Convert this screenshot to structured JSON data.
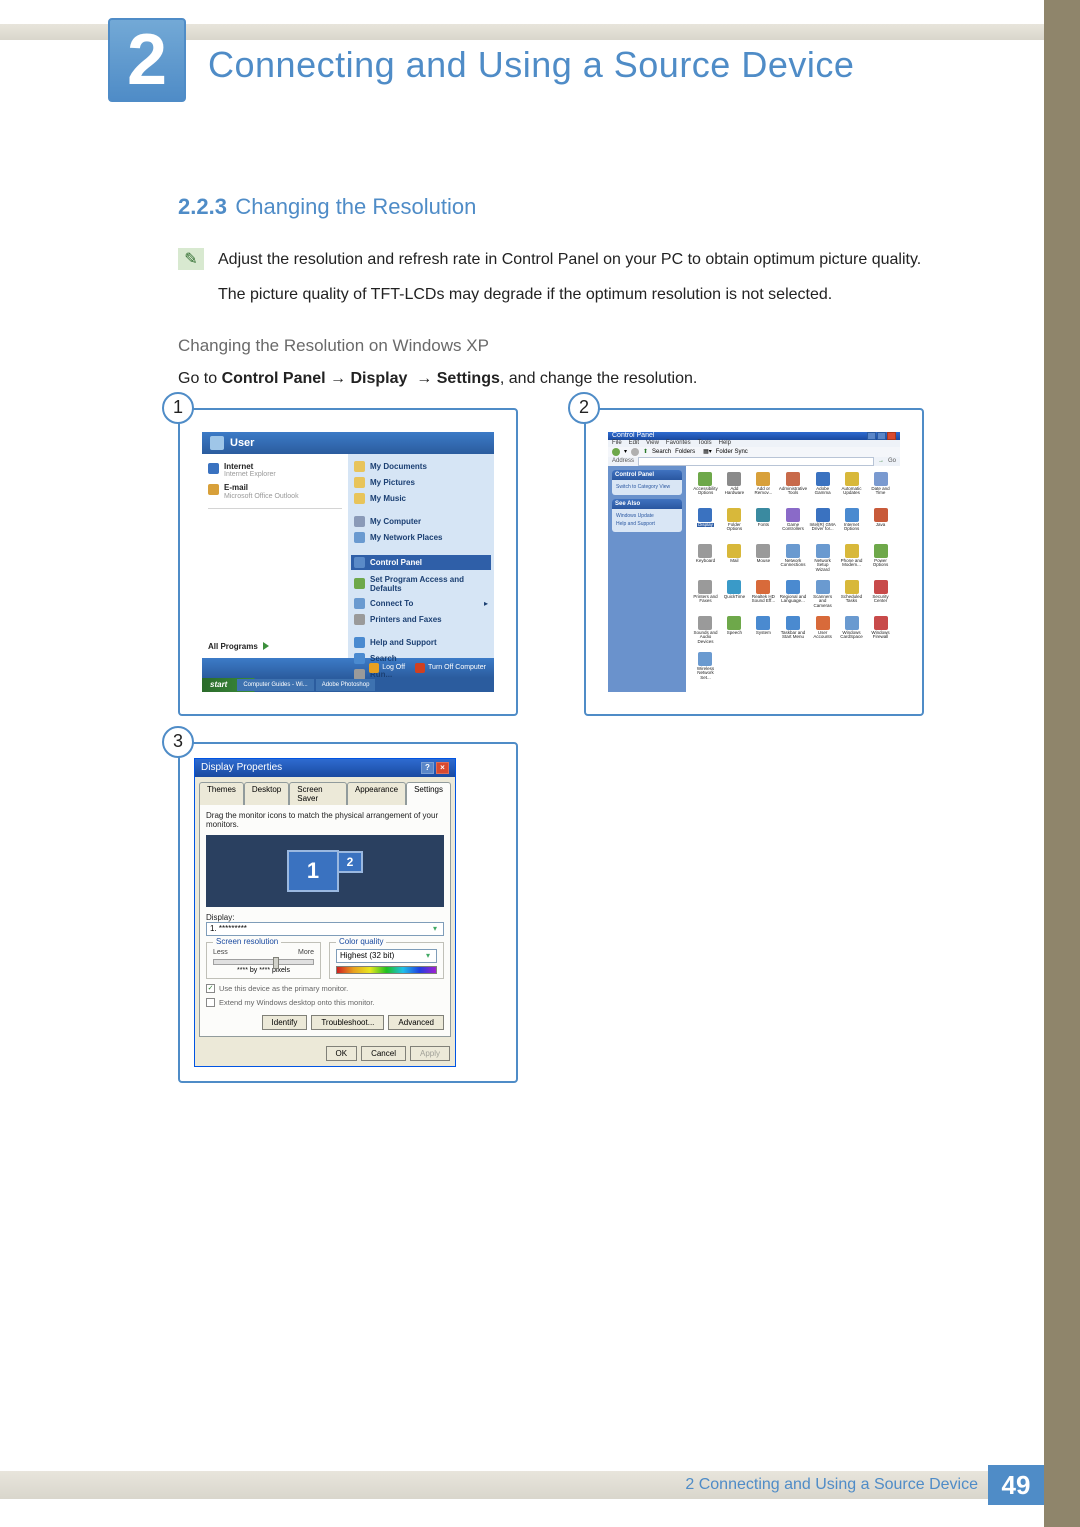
{
  "chapter": {
    "number": "2",
    "title": "Connecting and Using a Source Device"
  },
  "section": {
    "number": "2.2.3",
    "title": "Changing the Resolution"
  },
  "note": {
    "line1": "Adjust the resolution and refresh rate in Control Panel on your PC to obtain optimum picture quality.",
    "line2": "The picture quality of TFT-LCDs may degrade if the optimum resolution is not selected."
  },
  "subhead": "Changing the Resolution on Windows XP",
  "instruction": {
    "prefix": "Go to ",
    "b1": "Control Panel",
    "arrow": " → ",
    "b2": "Display",
    "b3": "Settings",
    "suffix": ", and change the resolution."
  },
  "steps": {
    "s1": "1",
    "s2": "2",
    "s3": "3"
  },
  "shot1": {
    "user": "User",
    "left": {
      "internet": "Internet",
      "internet_sub": "Internet Explorer",
      "email": "E-mail",
      "email_sub": "Microsoft Office Outlook",
      "all": "All Programs"
    },
    "right": {
      "mydocs": "My Documents",
      "mypics": "My Pictures",
      "mymusic": "My Music",
      "mycomp": "My Computer",
      "netplaces": "My Network Places",
      "cpanel": "Control Panel",
      "setprog": "Set Program Access and Defaults",
      "connect": "Connect To",
      "printers": "Printers and Faxes",
      "help": "Help and Support",
      "search": "Search",
      "run": "Run..."
    },
    "logoff": "Log Off",
    "turnoff": "Turn Off Computer",
    "start": "start",
    "task1": "Computer Guides - Wi...",
    "task2": "Adobe Photoshop"
  },
  "shot2": {
    "title": "Control Panel",
    "menu": {
      "file": "File",
      "edit": "Edit",
      "view": "View",
      "fav": "Favorites",
      "tools": "Tools",
      "help": "Help"
    },
    "toolbar": {
      "search": "Search",
      "folders": "Folders",
      "sync": "Folder Sync"
    },
    "address_label": "Address",
    "side": {
      "p1": "Control Panel",
      "p1_l1": "Switch to Category View",
      "p2": "See Also",
      "p2_l1": "Windows Update",
      "p2_l2": "Help and Support"
    },
    "icons": [
      {
        "t": "Accessibility Options",
        "c": "#6ea84a"
      },
      {
        "t": "Add Hardware",
        "c": "#8a8a8a"
      },
      {
        "t": "Add or Remov...",
        "c": "#d8a03a"
      },
      {
        "t": "Administrative Tools",
        "c": "#c86a4a"
      },
      {
        "t": "Adobe Gamma",
        "c": "#3a72c0"
      },
      {
        "t": "Automatic Updates",
        "c": "#d8b83a"
      },
      {
        "t": "Date and Time",
        "c": "#7a9ad0"
      },
      {
        "t": "Display",
        "c": "#3a72c0",
        "hl": true
      },
      {
        "t": "Folder Options",
        "c": "#d8b83a"
      },
      {
        "t": "Fonts",
        "c": "#3a8aa0"
      },
      {
        "t": "Game Controllers",
        "c": "#8a6ac8"
      },
      {
        "t": "Intel(R) GMA Driver for...",
        "c": "#3a72c0"
      },
      {
        "t": "Internet Options",
        "c": "#4a8ad0"
      },
      {
        "t": "Java",
        "c": "#c85a3a"
      },
      {
        "t": "Keyboard",
        "c": "#9a9a9a"
      },
      {
        "t": "Mail",
        "c": "#d8b83a"
      },
      {
        "t": "Mouse",
        "c": "#9a9a9a"
      },
      {
        "t": "Network Connections",
        "c": "#6a9ad0"
      },
      {
        "t": "Network Setup Wizard",
        "c": "#6a9ad0"
      },
      {
        "t": "Phone and Modem...",
        "c": "#d8b83a"
      },
      {
        "t": "Power Options",
        "c": "#6ea84a"
      },
      {
        "t": "Printers and Faxes",
        "c": "#9a9a9a"
      },
      {
        "t": "QuickTime",
        "c": "#3a9ac8"
      },
      {
        "t": "Realtek HD Sound Eff...",
        "c": "#d86a3a"
      },
      {
        "t": "Regional and Language...",
        "c": "#4a8ad0"
      },
      {
        "t": "Scanners and Cameras",
        "c": "#6a9ad0"
      },
      {
        "t": "Scheduled Tasks",
        "c": "#d8b83a"
      },
      {
        "t": "Security Center",
        "c": "#c84a4a"
      },
      {
        "t": "Sounds and Audio Devices",
        "c": "#9a9a9a"
      },
      {
        "t": "Speech",
        "c": "#6ea84a"
      },
      {
        "t": "System",
        "c": "#4a8ad0"
      },
      {
        "t": "Taskbar and Start Menu",
        "c": "#4a8ad0"
      },
      {
        "t": "User Accounts",
        "c": "#d86a3a"
      },
      {
        "t": "Windows CardSpace",
        "c": "#6a9ad0"
      },
      {
        "t": "Windows Firewall",
        "c": "#c84a4a"
      },
      {
        "t": "Wireless Network Set...",
        "c": "#6a9ad0"
      }
    ]
  },
  "shot3": {
    "title": "Display Properties",
    "tabs": {
      "themes": "Themes",
      "desktop": "Desktop",
      "saver": "Screen Saver",
      "appear": "Appearance",
      "settings": "Settings"
    },
    "drag": "Drag the monitor icons to match the physical arrangement of your monitors.",
    "mon1": "1",
    "mon2": "2",
    "display_label": "Display:",
    "display_value": "1. *********",
    "res_label": "Screen resolution",
    "less": "Less",
    "more": "More",
    "res_value": "**** by **** pixels",
    "color_label": "Color quality",
    "color_value": "Highest (32 bit)",
    "chk1": "Use this device as the primary monitor.",
    "chk2": "Extend my Windows desktop onto this monitor.",
    "identify": "Identify",
    "trouble": "Troubleshoot...",
    "advanced": "Advanced",
    "ok": "OK",
    "cancel": "Cancel",
    "apply": "Apply"
  },
  "footer": {
    "chapter_ref": "2 Connecting and Using a Source Device",
    "page": "49"
  }
}
